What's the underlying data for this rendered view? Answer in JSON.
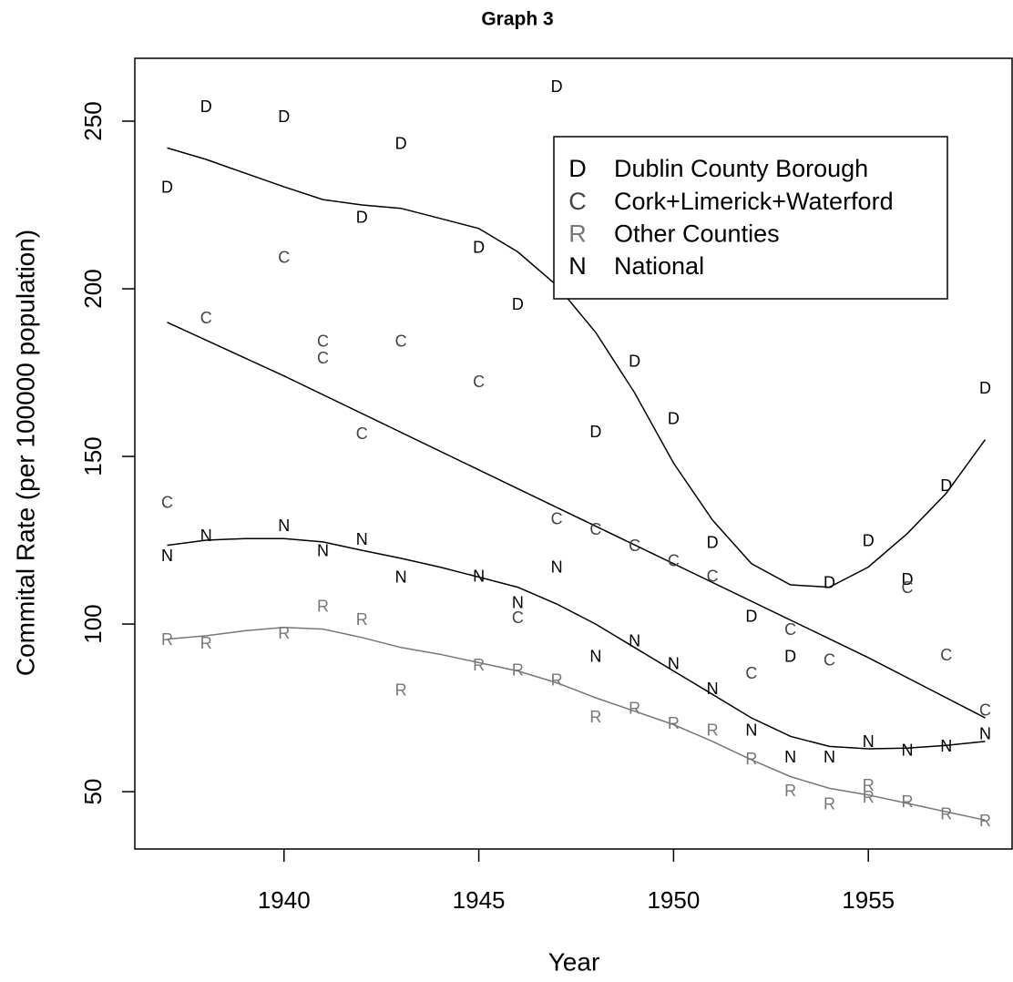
{
  "chart_data": {
    "type": "scatter",
    "title": "Graph 3",
    "x_label": "Year",
    "y_label": "Commital Rate (per 100000 population)",
    "xlim": [
      1936.17,
      1958.69
    ],
    "ylim": [
      32.9,
      268.75
    ],
    "xticks": [
      1940,
      1945,
      1950,
      1955
    ],
    "yticks": [
      50,
      100,
      150,
      200,
      250
    ],
    "legend": "topright",
    "series": [
      {
        "name": "Dublin County Borough",
        "marker": "D",
        "color": "#000000",
        "x": [
          1937,
          1938,
          1940,
          1942,
          1943,
          1945,
          1946,
          1947,
          1948,
          1949,
          1950,
          1951,
          1952,
          1953,
          1954,
          1955,
          1956,
          1957,
          1958
        ],
        "values": [
          230,
          254,
          251,
          221,
          243,
          212,
          195,
          260,
          157,
          178,
          161,
          124,
          102,
          90,
          112,
          124.5,
          113,
          141,
          170
        ],
        "smooth": {
          "color": "#000000",
          "x": [
            1937,
            1938,
            1939,
            1940,
            1941,
            1942,
            1943,
            1944,
            1945,
            1946,
            1947,
            1948,
            1949,
            1950,
            1951,
            1952,
            1953,
            1954,
            1955,
            1956,
            1957,
            1958
          ],
          "values": [
            242,
            238.6,
            234.5,
            230.4,
            226.6,
            225,
            224,
            221,
            218,
            211,
            201,
            187,
            169,
            148,
            131,
            118,
            111.7,
            111,
            117,
            127,
            139,
            155
          ]
        }
      },
      {
        "name": "Cork+Limerick+Waterford",
        "marker": "C",
        "color": "#444444",
        "x": [
          1937,
          1938,
          1940,
          1941,
          1941,
          1942,
          1943,
          1945,
          1946,
          1947,
          1948,
          1949,
          1950,
          1951,
          1952,
          1953,
          1954,
          1956,
          1957,
          1958
        ],
        "values": [
          136,
          191,
          209,
          184,
          179,
          156.5,
          184,
          172,
          101.6,
          131,
          128,
          123,
          118.5,
          114,
          85,
          98,
          89,
          110.6,
          90.5,
          74
        ],
        "smooth": {
          "color": "#000000",
          "x": [
            1937,
            1940,
            1945,
            1950,
            1955,
            1958
          ],
          "values": [
            190,
            174,
            146,
            118,
            90,
            72
          ]
        }
      },
      {
        "name": "Other Counties",
        "marker": "R",
        "color": "#777777",
        "x": [
          1937,
          1938,
          1940,
          1941,
          1942,
          1943,
          1945,
          1946,
          1947,
          1948,
          1949,
          1950,
          1951,
          1952,
          1953,
          1954,
          1955,
          1955,
          1956,
          1957,
          1958
        ],
        "values": [
          95,
          94,
          97,
          105,
          101,
          80,
          87.5,
          86,
          83,
          72,
          74.5,
          70,
          68,
          59.5,
          50,
          46,
          51.6,
          48,
          46.7,
          43,
          41
        ],
        "smooth": {
          "color": "#777777",
          "x": [
            1937,
            1938,
            1939,
            1940,
            1941,
            1942,
            1943,
            1944,
            1945,
            1946,
            1947,
            1948,
            1949,
            1950,
            1951,
            1952,
            1953,
            1954,
            1955,
            1956,
            1957,
            1958
          ],
          "values": [
            95.5,
            96.5,
            98,
            99,
            98.5,
            96,
            93,
            91,
            88.5,
            86,
            82.5,
            78,
            74,
            70,
            65,
            59.5,
            54.5,
            51,
            49,
            46.5,
            44,
            41.5
          ]
        }
      },
      {
        "name": "National",
        "marker": "N",
        "color": "#000000",
        "x": [
          1937,
          1938,
          1940,
          1941,
          1942,
          1943,
          1945,
          1946,
          1947,
          1948,
          1949,
          1950,
          1951,
          1952,
          1953,
          1954,
          1955,
          1956,
          1957,
          1958
        ],
        "values": [
          120,
          126,
          129,
          121.5,
          125,
          113.6,
          114,
          106,
          116.6,
          90,
          94.6,
          87.8,
          80.4,
          68,
          60,
          60,
          64.6,
          62,
          63.3,
          67
        ],
        "smooth": {
          "color": "#000000",
          "x": [
            1937,
            1938,
            1939,
            1940,
            1941,
            1942,
            1943,
            1944,
            1945,
            1946,
            1947,
            1948,
            1949,
            1950,
            1951,
            1952,
            1953,
            1954,
            1955,
            1956,
            1957,
            1958
          ],
          "values": [
            123.5,
            125,
            125.5,
            125.5,
            124.5,
            122,
            119.6,
            117,
            114,
            111,
            106,
            100,
            93,
            86,
            79,
            72,
            66.5,
            63.5,
            62.8,
            63,
            63.8,
            65
          ]
        }
      }
    ]
  }
}
